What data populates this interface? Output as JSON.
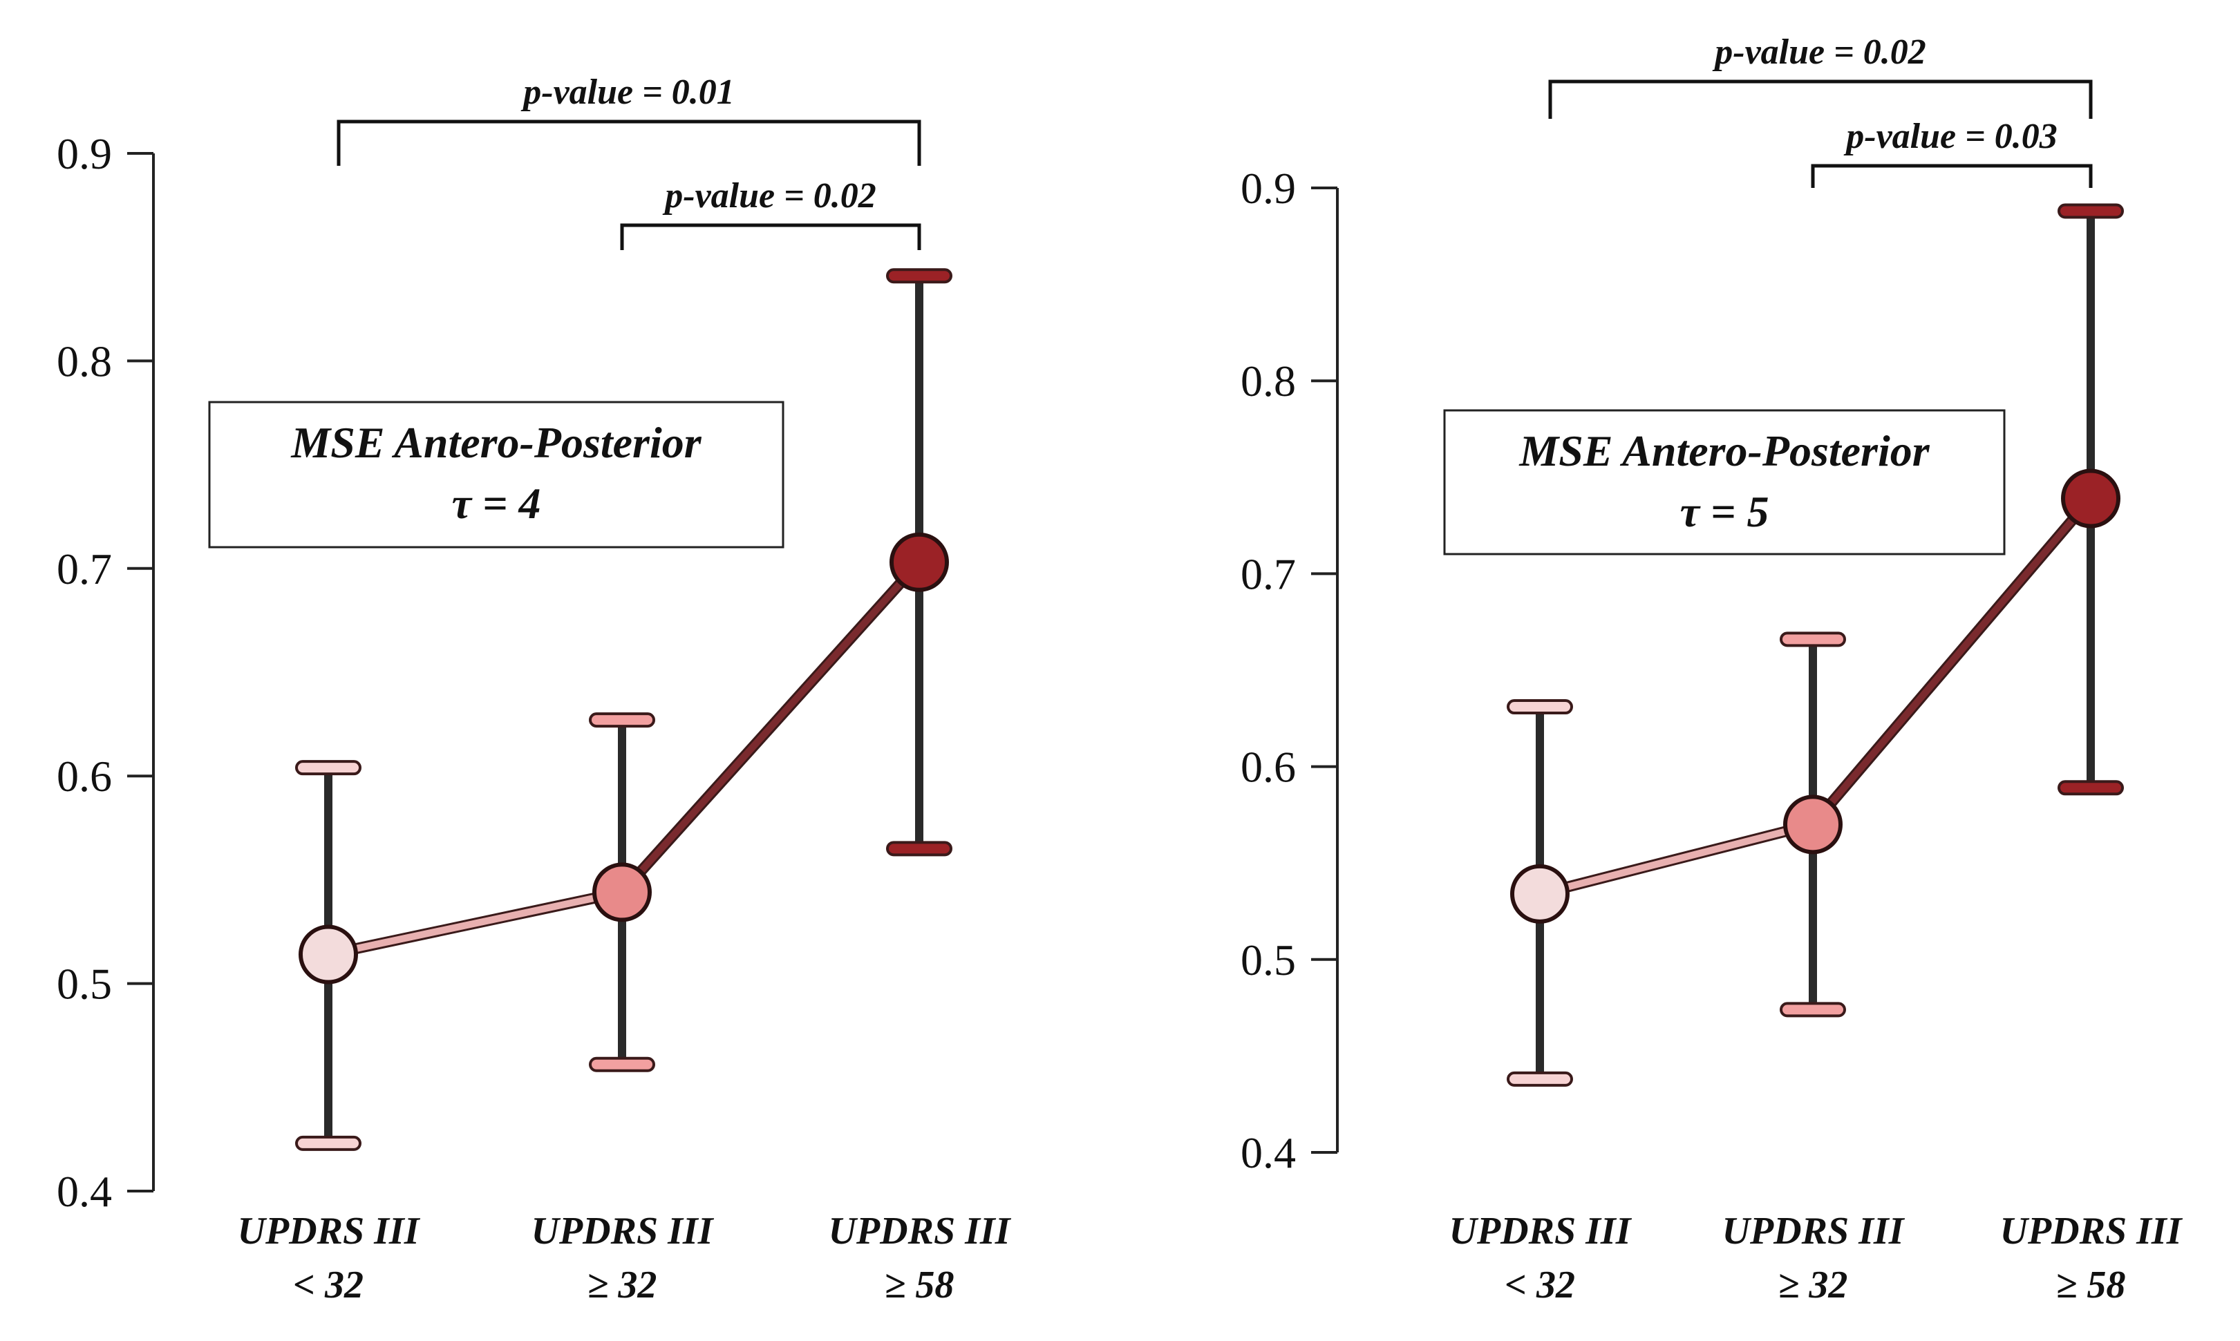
{
  "chart_data": [
    {
      "type": "line",
      "panel_label": [
        "MSE Antero-Posterior",
        "τ = 4"
      ],
      "categories": [
        [
          "UPDRS III",
          "< 32"
        ],
        [
          "UPDRS III",
          "≥ 32"
        ],
        [
          "UPDRS III",
          "≥ 58"
        ]
      ],
      "y_ticks": [
        "0.4",
        "0.5",
        "0.6",
        "0.7",
        "0.8",
        "0.9"
      ],
      "ylim": [
        0.4,
        0.9
      ],
      "means": [
        0.514,
        0.544,
        0.703
      ],
      "lower": [
        0.423,
        0.461,
        0.565
      ],
      "upper": [
        0.604,
        0.627,
        0.841
      ],
      "point_colors": [
        "#f3dcdc",
        "#e88a8a",
        "#9b2226"
      ],
      "cap_colors": [
        "#f7d3d3",
        "#f2a0a0",
        "#9b2226"
      ],
      "segment_colors": [
        "#e8b0b0",
        "#7a2a2e"
      ],
      "comparisons": [
        {
          "text": "p-value = 0.01",
          "from": 0,
          "to": 2,
          "level": "upper"
        },
        {
          "text": "p-value = 0.02",
          "from": 1,
          "to": 2,
          "level": "lower"
        }
      ]
    },
    {
      "type": "line",
      "panel_label": [
        "MSE Antero-Posterior",
        "τ = 5"
      ],
      "categories": [
        [
          "UPDRS III",
          "< 32"
        ],
        [
          "UPDRS III",
          "≥ 32"
        ],
        [
          "UPDRS III",
          "≥ 58"
        ]
      ],
      "y_ticks": [
        "0.4",
        "0.5",
        "0.6",
        "0.7",
        "0.8",
        "0.9"
      ],
      "ylim": [
        0.4,
        0.9
      ],
      "means": [
        0.534,
        0.57,
        0.739
      ],
      "lower": [
        0.438,
        0.474,
        0.589
      ],
      "upper": [
        0.631,
        0.666,
        0.888
      ],
      "point_colors": [
        "#f3dcdc",
        "#e88a8a",
        "#9b2226"
      ],
      "cap_colors": [
        "#f7d3d3",
        "#f2a0a0",
        "#9b2226"
      ],
      "segment_colors": [
        "#e8b0b0",
        "#7a2a2e"
      ],
      "comparisons": [
        {
          "text": "p-value = 0.02",
          "from": 0,
          "to": 2,
          "level": "upper"
        },
        {
          "text": "p-value = 0.03",
          "from": 1,
          "to": 2,
          "level": "lower"
        }
      ]
    }
  ]
}
